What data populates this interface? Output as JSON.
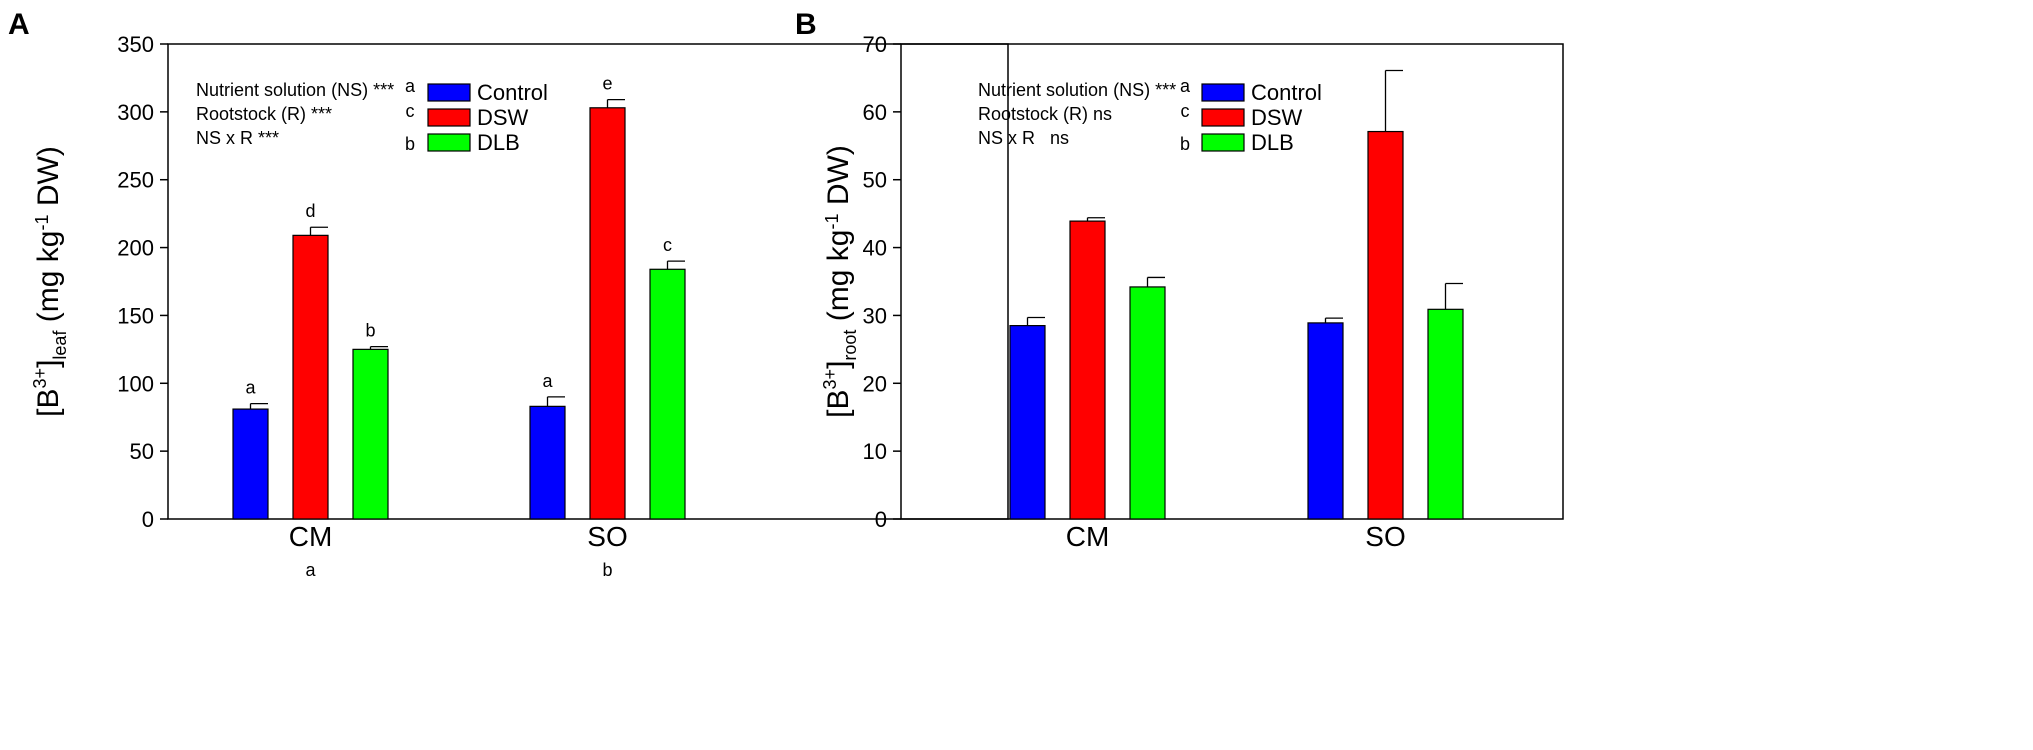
{
  "chart_data": [
    {
      "panel_label": "A",
      "type": "bar",
      "categories": [
        "CM",
        "SO"
      ],
      "category_letters": [
        "a",
        "b"
      ],
      "series": [
        {
          "name": "Control",
          "color": "#0000ff",
          "values": [
            81,
            83
          ],
          "errors": [
            4,
            7
          ],
          "letters": [
            "a",
            "a"
          ]
        },
        {
          "name": "DSW",
          "color": "#ff0000",
          "values": [
            209,
            303
          ],
          "errors": [
            6,
            6
          ],
          "letters": [
            "d",
            "e"
          ]
        },
        {
          "name": "DLB",
          "color": "#00ff00",
          "values": [
            125,
            184
          ],
          "errors": [
            2,
            6
          ],
          "letters": [
            "b",
            "c"
          ]
        }
      ],
      "ylim": [
        0,
        350
      ],
      "yticks": [
        0,
        50,
        100,
        150,
        200,
        250,
        300,
        350
      ],
      "ylabel": {
        "main": "[B",
        "sup": "3+",
        "close": "]",
        "sub": "leaf",
        "unit_a": " (mg kg",
        "unit_sup": "-1",
        "unit_b": " DW)"
      },
      "annotations": [
        "Nutrient solution (NS) ***",
        "Rootstock (R) ***",
        "NS x R ***"
      ],
      "legend_letters": [
        "a",
        "c",
        "b"
      ],
      "legend_position": "top-left"
    },
    {
      "panel_label": "B",
      "type": "bar",
      "categories": [
        "CM",
        "SO"
      ],
      "category_letters": [],
      "series": [
        {
          "name": "Control",
          "color": "#0000ff",
          "values": [
            28.5,
            28.9
          ],
          "errors": [
            1.2,
            0.7
          ],
          "letters": []
        },
        {
          "name": "DSW",
          "color": "#ff0000",
          "values": [
            43.9,
            57.1
          ],
          "errors": [
            0.5,
            9.0
          ],
          "letters": []
        },
        {
          "name": "DLB",
          "color": "#00ff00",
          "values": [
            34.2,
            30.9
          ],
          "errors": [
            1.4,
            3.8
          ],
          "letters": []
        }
      ],
      "ylim": [
        0,
        70
      ],
      "yticks": [
        0,
        10,
        20,
        30,
        40,
        50,
        60,
        70
      ],
      "ylabel": {
        "main": "[B",
        "sup": "3+",
        "close": "]",
        "sub": "root",
        "unit_a": " (mg kg",
        "unit_sup": "-1",
        "unit_b": " DW)"
      },
      "annotations": [
        "Nutrient solution (NS) ***",
        "Rootstock (R) ns",
        "NS x R   ns"
      ],
      "legend_letters": [
        "a",
        "c",
        "b"
      ],
      "legend_position": "top-left"
    }
  ]
}
